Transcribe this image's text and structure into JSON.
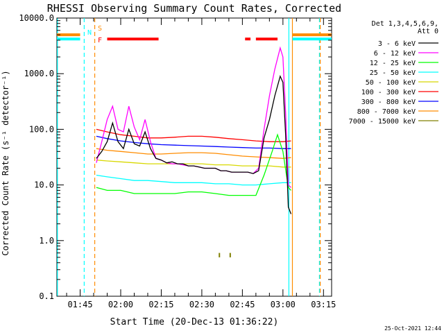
{
  "chart_data": {
    "type": "line",
    "title": "RHESSI Observing Summary Count Rates, Corrected",
    "xlabel": "Start Time (20-Dec-13 01:36:22)",
    "ylabel": "Corrected Count Rate (s⁻¹ detector⁻¹)",
    "yscale": "log",
    "ylim": [
      0.1,
      10000
    ],
    "xlim_minutes": [
      96.4,
      198
    ],
    "y_ticks": [
      "0.1",
      "1.0",
      "10.0",
      "100.0",
      "1000.0",
      "10000.0"
    ],
    "x_ticks": [
      "01:45",
      "02:00",
      "02:15",
      "02:30",
      "02:45",
      "03:00",
      "03:15"
    ],
    "x_tick_minutes": [
      105,
      120,
      135,
      150,
      165,
      180,
      195
    ],
    "legend_header": [
      "Det 1,3,4,5,6,9,",
      "Att 0"
    ],
    "legend_position": "right",
    "series": [
      {
        "name": "3 - 6 keV",
        "color": "#000000",
        "x": [
          111,
          113,
          115,
          117,
          119,
          121,
          123,
          125,
          127,
          129,
          131,
          133,
          135,
          137,
          139,
          141,
          143,
          145,
          147,
          149,
          151,
          153,
          155,
          157,
          159,
          161,
          163,
          165,
          167,
          169,
          171,
          173,
          175,
          177,
          179,
          180,
          181,
          182,
          183
        ],
        "y": [
          30,
          40,
          60,
          130,
          60,
          45,
          100,
          55,
          50,
          90,
          45,
          30,
          28,
          25,
          26,
          24,
          24,
          22,
          22,
          21,
          20,
          20,
          20,
          18,
          18,
          17,
          17,
          17,
          17,
          16,
          18,
          70,
          150,
          400,
          900,
          700,
          80,
          4,
          3
        ]
      },
      {
        "name": "6 - 12 keV",
        "color": "#ff00ff",
        "x": [
          111,
          113,
          115,
          117,
          119,
          121,
          123,
          125,
          127,
          129,
          131,
          133,
          135,
          137,
          139,
          141,
          143,
          145,
          147,
          149,
          151,
          153,
          155,
          157,
          159,
          161,
          163,
          165,
          167,
          169,
          171,
          173,
          175,
          177,
          179,
          180,
          181,
          182,
          183
        ],
        "y": [
          25,
          60,
          150,
          260,
          100,
          90,
          260,
          110,
          65,
          150,
          60,
          30,
          28,
          25,
          24,
          24,
          23,
          22,
          22,
          21,
          20,
          20,
          20,
          18,
          18,
          17,
          17,
          17,
          17,
          16,
          20,
          100,
          400,
          1200,
          2900,
          2000,
          200,
          10,
          9
        ]
      },
      {
        "name": "12 - 25 keV",
        "color": "#00ff00",
        "x": [
          111,
          115,
          120,
          125,
          130,
          135,
          140,
          145,
          150,
          155,
          160,
          165,
          170,
          173,
          176,
          178,
          180,
          182,
          183
        ],
        "y": [
          9,
          8,
          8,
          7,
          7,
          7,
          7,
          7.5,
          7.5,
          7,
          6.5,
          6.5,
          6.5,
          15,
          40,
          80,
          40,
          9,
          8
        ]
      },
      {
        "name": "25 - 50 keV",
        "color": "#00ffff",
        "x": [
          111,
          115,
          120,
          125,
          130,
          135,
          140,
          145,
          150,
          155,
          160,
          165,
          170,
          175,
          180,
          183
        ],
        "y": [
          15,
          14,
          13,
          12,
          12,
          11.5,
          11,
          11,
          11,
          10.5,
          10.5,
          10,
          10,
          10.5,
          11,
          11
        ]
      },
      {
        "name": "50 - 100 keV",
        "color": "#d8d800",
        "x": [
          111,
          115,
          120,
          125,
          130,
          135,
          140,
          145,
          150,
          155,
          160,
          165,
          170,
          175,
          180,
          183
        ],
        "y": [
          28,
          27,
          26,
          25,
          24,
          24,
          24,
          24,
          24,
          23,
          23,
          22,
          22,
          22,
          21,
          21
        ]
      },
      {
        "name": "100 - 300 keV",
        "color": "#ff0000",
        "x": [
          111,
          115,
          120,
          125,
          130,
          135,
          140,
          145,
          150,
          155,
          160,
          165,
          170,
          175,
          180,
          183
        ],
        "y": [
          100,
          90,
          80,
          75,
          70,
          70,
          72,
          75,
          75,
          72,
          68,
          65,
          62,
          60,
          60,
          62
        ]
      },
      {
        "name": "300 - 800 keV",
        "color": "#0000ff",
        "x": [
          111,
          115,
          120,
          125,
          130,
          135,
          140,
          145,
          150,
          155,
          160,
          165,
          170,
          175,
          180,
          183
        ],
        "y": [
          75,
          68,
          62,
          58,
          55,
          53,
          52,
          51,
          50,
          49,
          48,
          47,
          46,
          46,
          45,
          45
        ]
      },
      {
        "name": "800 - 7000 keV",
        "color": "#ff8c00",
        "x": [
          111,
          115,
          120,
          125,
          130,
          135,
          140,
          145,
          150,
          155,
          160,
          165,
          170,
          175,
          180,
          183
        ],
        "y": [
          45,
          42,
          40,
          38,
          36,
          36,
          37,
          38,
          38,
          37,
          35,
          33,
          32,
          31,
          30,
          31
        ]
      },
      {
        "name": "7000 - 15000 keV",
        "color": "#808000",
        "x": [
          111,
          115,
          120,
          125,
          130,
          135,
          140,
          145,
          150,
          155,
          160,
          165,
          170,
          175,
          180,
          183
        ],
        "y": [
          0.1,
          0.1,
          0.1,
          0.1,
          0.1,
          0.1,
          0.1,
          0.1,
          0.1,
          0.1,
          0.1,
          0.1,
          0.1,
          0.1,
          0.1,
          0.1
        ]
      }
    ],
    "flag_rows": [
      {
        "label": "S",
        "color": "#ff8c00",
        "y": 5000,
        "segments": [
          [
            96.4,
            105
          ],
          [
            183.5,
            198
          ]
        ]
      },
      {
        "label": "N",
        "color": "#00ffff",
        "y": 4200,
        "segments": [
          [
            96.4,
            105
          ],
          [
            183.5,
            198
          ]
        ]
      },
      {
        "label": "F",
        "color": "#ff0000",
        "y": 4200,
        "segments": [
          [
            115,
            134
          ],
          [
            166,
            168
          ],
          [
            170,
            178
          ]
        ]
      }
    ],
    "vertical_lines": [
      {
        "x": 96.6,
        "color": "#00ffff",
        "style": "solid"
      },
      {
        "x": 106.5,
        "color": "#00ffff",
        "style": "dashed"
      },
      {
        "x": 110.4,
        "color": "#ff8c00",
        "style": "dashed"
      },
      {
        "x": 182.2,
        "color": "#00ffff",
        "style": "solid"
      },
      {
        "x": 183.5,
        "color": "#ff8c00",
        "style": "solid"
      },
      {
        "x": 193.5,
        "color": "#00ffff",
        "style": "dashed"
      },
      {
        "x": 193.8,
        "color": "#ff8c00",
        "style": "dashed"
      }
    ],
    "timestamp": "25-Oct-2021 12:44"
  }
}
